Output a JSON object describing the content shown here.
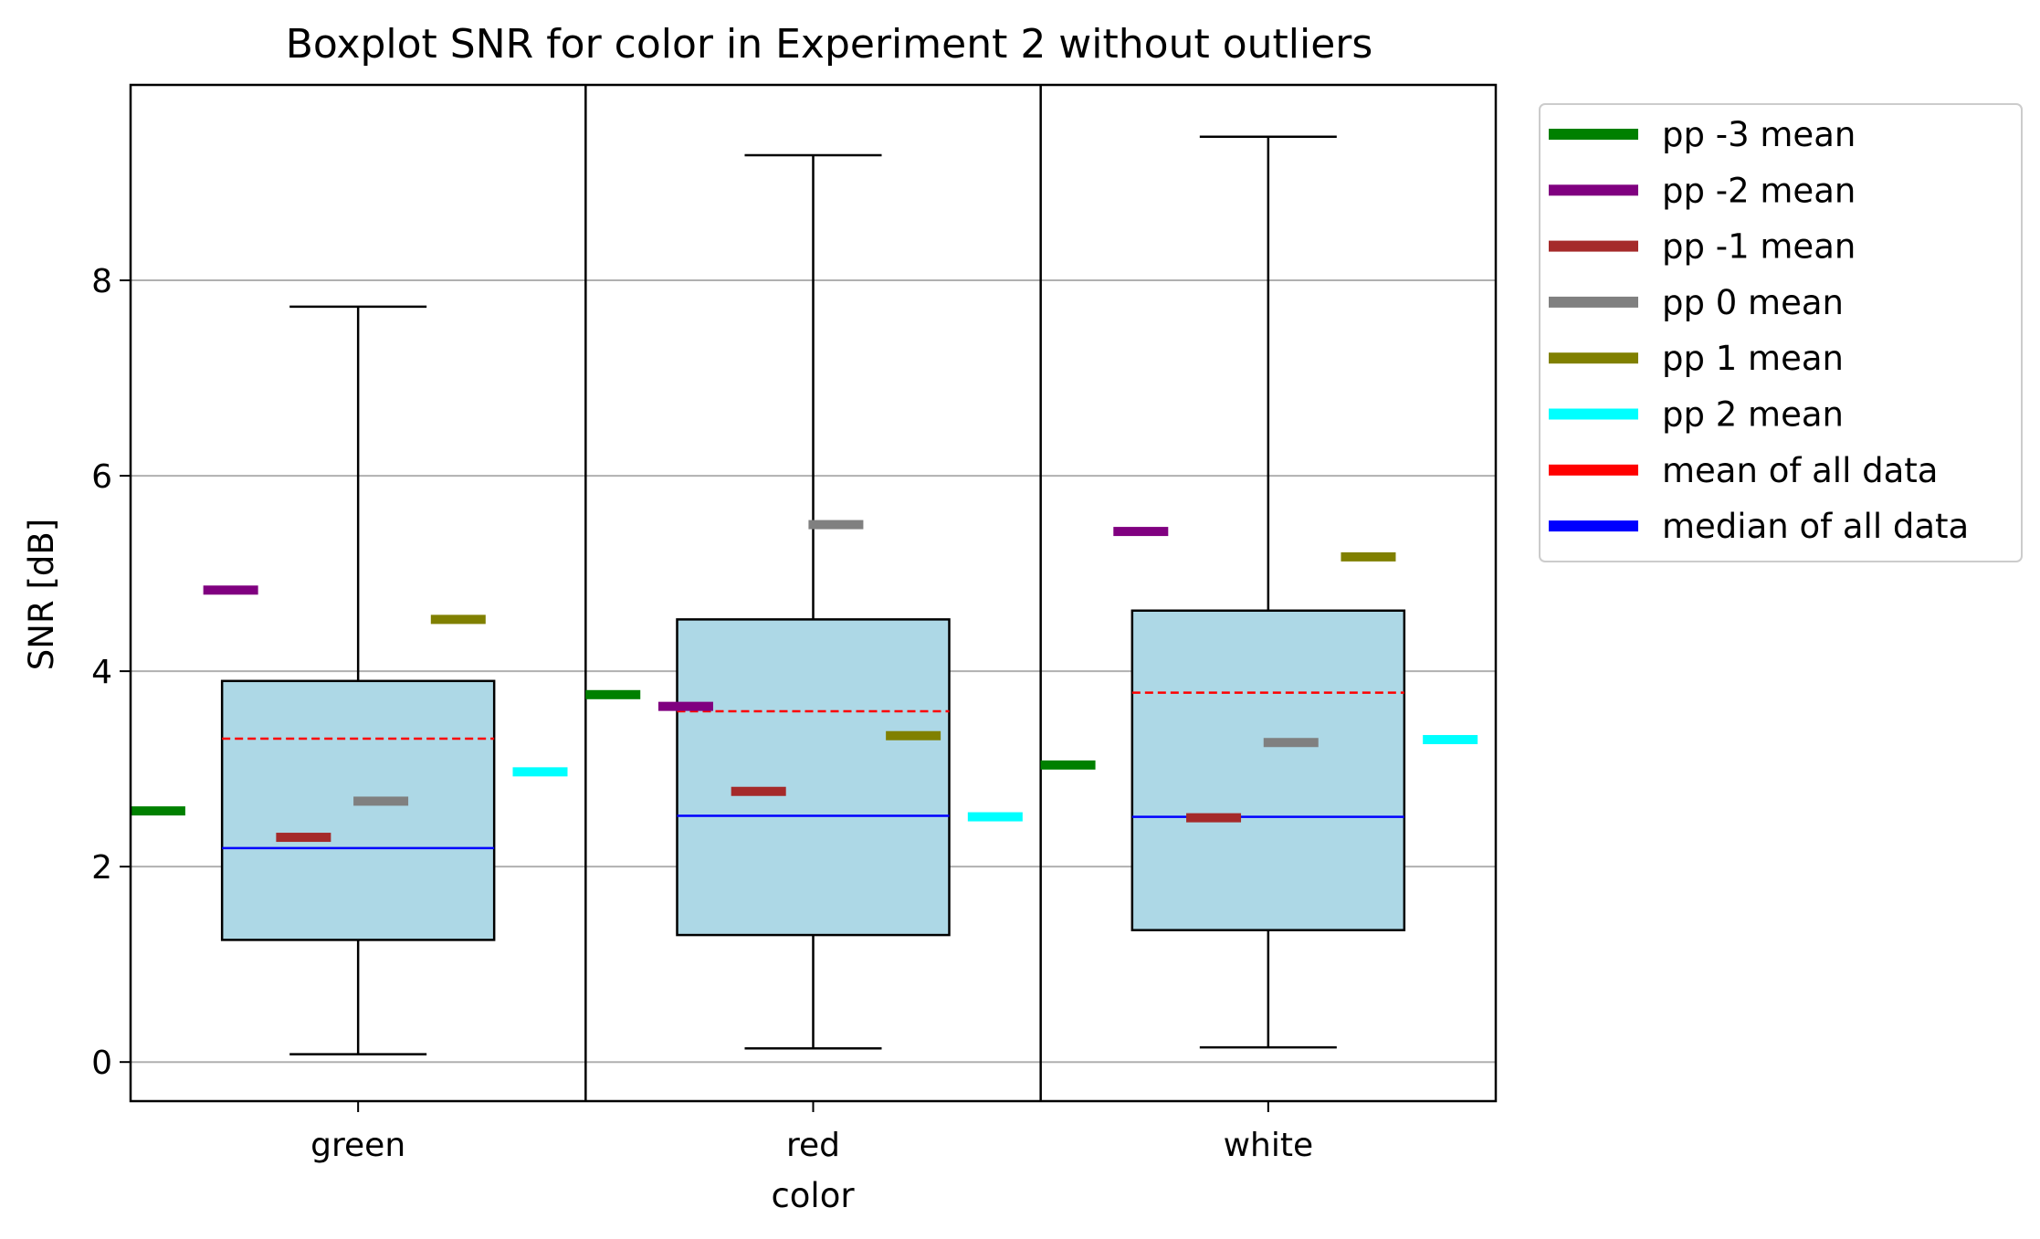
{
  "chart_data": {
    "type": "box",
    "title": "Boxplot SNR for color in Experiment 2 without outliers",
    "xlabel": "color",
    "ylabel": "SNR [dB]",
    "categories": [
      "green",
      "red",
      "white"
    ],
    "ylim": [
      -0.4,
      10.0
    ],
    "yticks": [
      0,
      2,
      4,
      6,
      8
    ],
    "grid": "y",
    "legend_position": "outside-right",
    "boxes": [
      {
        "category": "green",
        "whisker_low": 0.08,
        "q1": 1.25,
        "median": 2.19,
        "q3": 3.9,
        "whisker_high": 7.73,
        "mean": 3.31
      },
      {
        "category": "red",
        "whisker_low": 0.14,
        "q1": 1.3,
        "median": 2.52,
        "q3": 4.53,
        "whisker_high": 9.28,
        "mean": 3.59
      },
      {
        "category": "white",
        "whisker_low": 0.15,
        "q1": 1.35,
        "median": 2.51,
        "q3": 4.62,
        "whisker_high": 9.47,
        "mean": 3.78
      }
    ],
    "series": [
      {
        "name": "pp -3 mean",
        "color": "#008000",
        "values": [
          2.57,
          3.76,
          3.04
        ]
      },
      {
        "name": "pp -2 mean",
        "color": "#800080",
        "values": [
          4.83,
          3.64,
          5.43
        ]
      },
      {
        "name": "pp -1 mean",
        "color": "#a52a2a",
        "values": [
          2.3,
          2.77,
          2.5
        ]
      },
      {
        "name": "pp 0 mean",
        "color": "#808080",
        "values": [
          2.67,
          5.5,
          3.27
        ]
      },
      {
        "name": "pp 1 mean",
        "color": "#808000",
        "values": [
          4.53,
          3.34,
          5.17
        ]
      },
      {
        "name": "pp 2 mean",
        "color": "#00ffff",
        "values": [
          2.97,
          2.51,
          3.3
        ]
      }
    ],
    "summary_lines": [
      {
        "name": "mean of all data",
        "color": "#ff0000",
        "style": "dashed"
      },
      {
        "name": "median of all data",
        "color": "#0000ff",
        "style": "solid"
      }
    ],
    "box_fill_color": "#add8e6"
  }
}
